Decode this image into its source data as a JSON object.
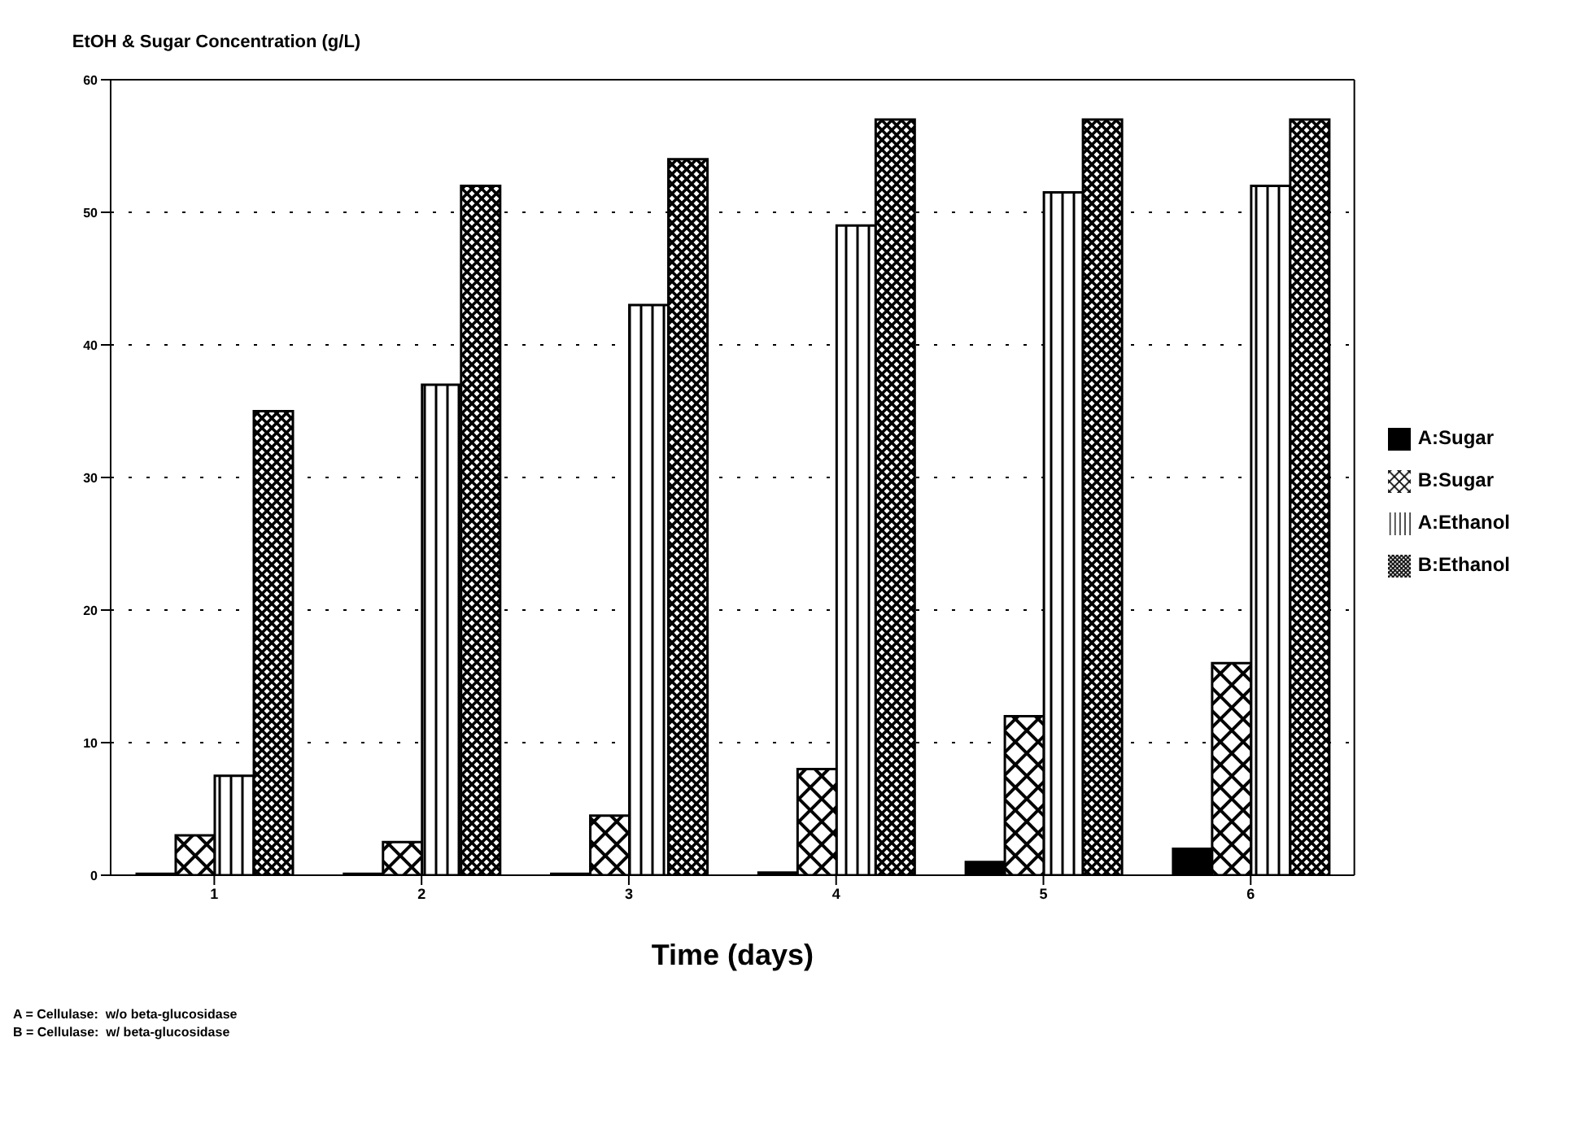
{
  "chart_data": {
    "type": "bar",
    "ylabel": "EtOH & Sugar Concentration (g/L)",
    "xlabel": "Time (days)",
    "categories": [
      "1",
      "2",
      "3",
      "4",
      "5",
      "6"
    ],
    "series": [
      {
        "name": "A:Sugar",
        "color": "#000000",
        "values": [
          0.1,
          0.1,
          0.1,
          0.2,
          1,
          2
        ]
      },
      {
        "name": "B:Sugar",
        "color": "#000000",
        "values": [
          3,
          2.5,
          4.5,
          8,
          12,
          16
        ]
      },
      {
        "name": "A:Ethanol",
        "color": "#000000",
        "values": [
          7.5,
          37,
          43,
          49,
          51.5,
          52
        ]
      },
      {
        "name": "B:Ethanol",
        "color": "#000000",
        "values": [
          35,
          52,
          54,
          57,
          57,
          57
        ]
      }
    ],
    "ylim": [
      0,
      60
    ],
    "yticks": [
      0,
      10,
      20,
      30,
      40,
      50,
      60
    ],
    "grid": "y",
    "legend": "right",
    "annotations": [
      "A = Cellulase:  w/o beta-glucosidase",
      "B = Cellulase:  w/ beta-glucosidase"
    ]
  }
}
